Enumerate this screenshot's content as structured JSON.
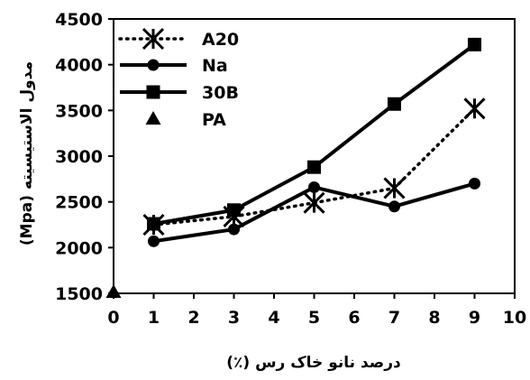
{
  "chart_data": {
    "type": "line",
    "title": "",
    "xlabel": "درصد نانو خاک رس (٪)",
    "ylabel": "مدول الاستیسیته (Mpa)",
    "xlim": [
      0,
      10
    ],
    "ylim": [
      1500,
      4500
    ],
    "xticks": [
      0,
      1,
      2,
      3,
      4,
      5,
      6,
      7,
      8,
      9,
      10
    ],
    "yticks": [
      1500,
      2000,
      2500,
      3000,
      3500,
      4000,
      4500
    ],
    "grid": false,
    "legend_position": "top-left",
    "series": [
      {
        "name": "A20",
        "marker": "star",
        "line": "dotted",
        "x": [
          1,
          3,
          5,
          7,
          9
        ],
        "y": [
          2250,
          2340,
          2490,
          2650,
          3520
        ]
      },
      {
        "name": "Na",
        "marker": "circle",
        "line": "solid",
        "x": [
          1,
          3,
          5,
          7,
          9
        ],
        "y": [
          2070,
          2200,
          2660,
          2450,
          2700
        ]
      },
      {
        "name": "30B",
        "marker": "square",
        "line": "solid",
        "x": [
          1,
          3,
          5,
          7,
          9
        ],
        "y": [
          2260,
          2410,
          2880,
          3570,
          4220
        ]
      },
      {
        "name": "PA",
        "marker": "triangle",
        "line": "none",
        "x": [
          0
        ],
        "y": [
          1510
        ]
      }
    ]
  },
  "colors": {
    "series": "#000000",
    "axis": "#000000",
    "background": "#ffffff"
  }
}
